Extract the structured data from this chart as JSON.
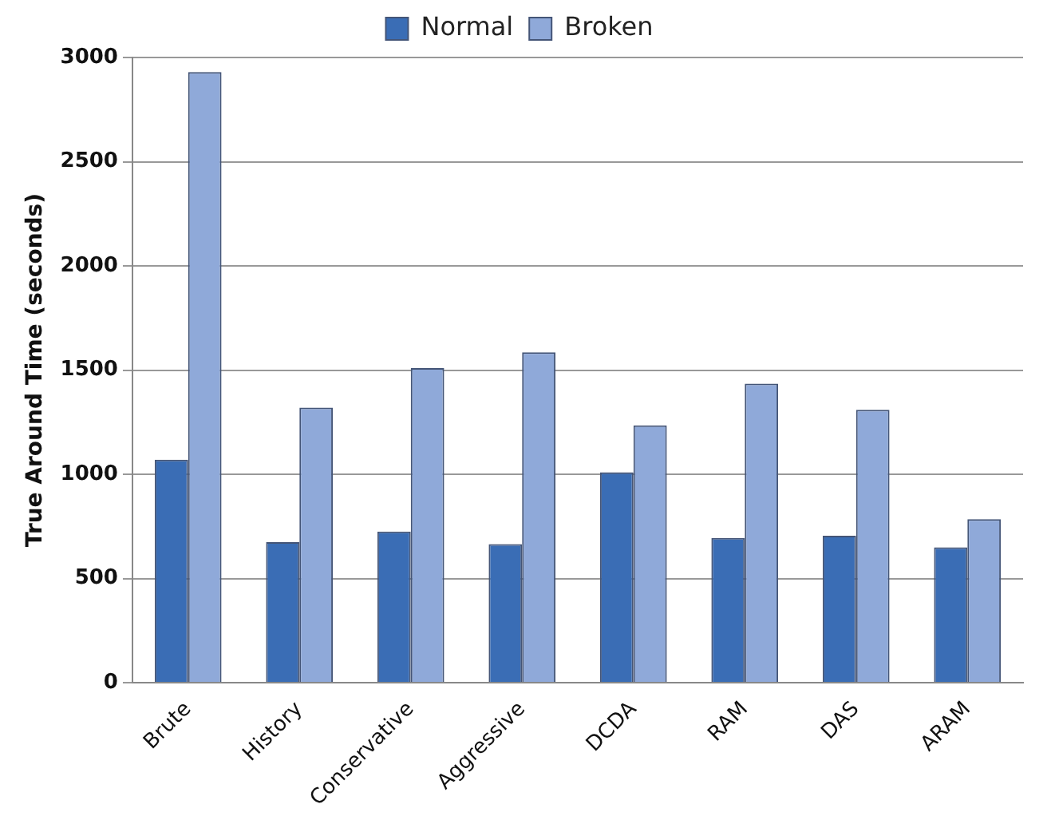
{
  "chart_data": {
    "type": "bar",
    "ylabel": "True Around Time (seconds)",
    "categories": [
      "Brute",
      "History",
      "Conservative",
      "Aggressive",
      "DCDA",
      "RAM",
      "DAS",
      "ARAM"
    ],
    "series": [
      {
        "name": "Normal",
        "color": "#3a6db5",
        "values": [
          1070,
          675,
          725,
          665,
          1010,
          695,
          705,
          650
        ]
      },
      {
        "name": "Broken",
        "color": "#8fa9d9",
        "values": [
          2930,
          1320,
          1510,
          1585,
          1235,
          1435,
          1310,
          785
        ]
      }
    ],
    "ylim": [
      0,
      3000
    ],
    "yticks": [
      0,
      500,
      1000,
      1500,
      2000,
      2500,
      3000
    ],
    "grid": "y",
    "legend": "top"
  }
}
